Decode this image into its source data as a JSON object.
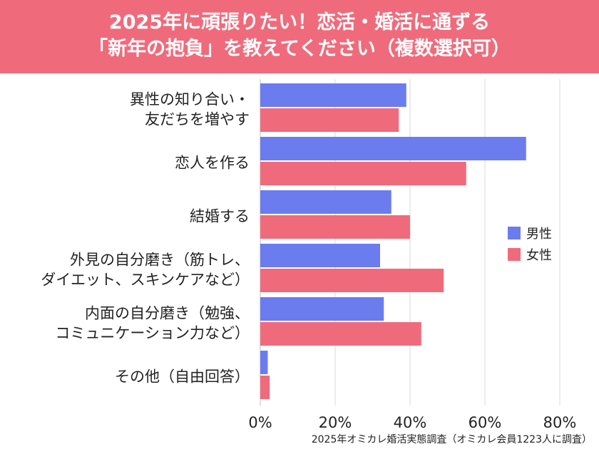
{
  "header": {
    "title_line1": "2025年に頑張りたい！恋活・婚活に通ずる",
    "title_line2": "「新年の抱負」を教えてください（複数選択可）"
  },
  "source": "2025年オミカレ婚活実態調査（オミカレ会員1223人に調査）",
  "chart_data": {
    "type": "bar",
    "orientation": "horizontal",
    "categories": [
      [
        "異性の知り合い・",
        "友だちを増やす"
      ],
      [
        "恋人を作る"
      ],
      [
        "結婚する"
      ],
      [
        "外見の自分磨き（筋トレ、",
        "ダイエット、スキンケアなど）"
      ],
      [
        "内面の自分磨き（勉強、",
        "コミュニケーション力など）"
      ],
      [
        "その他（自由回答）"
      ]
    ],
    "series": [
      {
        "name": "男性",
        "color": "#6b7cee",
        "values": [
          39,
          71,
          35,
          32,
          33,
          2
        ]
      },
      {
        "name": "女性",
        "color": "#ef6b7c",
        "values": [
          37,
          55,
          40,
          49,
          43,
          2.5
        ]
      }
    ],
    "xlim": [
      0,
      80
    ],
    "xticks": [
      "0%",
      "20%",
      "40%",
      "60%",
      "80%"
    ],
    "grid": true,
    "legend": "right"
  }
}
